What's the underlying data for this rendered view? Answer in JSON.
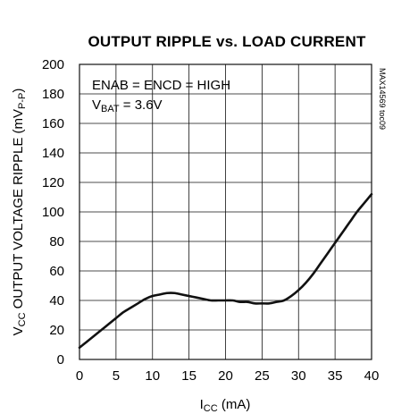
{
  "chart_data": {
    "type": "line",
    "title": "OUTPUT RIPPLE vs. LOAD CURRENT",
    "xlabel": {
      "main": "I",
      "sub": "CC",
      "unit": " (mA)"
    },
    "ylabel": {
      "main": "V",
      "sub": "CC",
      "rest": " OUTPUT VOLTAGE RIPPLE (mV",
      "sub2": "P-P",
      "end": ")"
    },
    "xlim": [
      0,
      40
    ],
    "ylim": [
      0,
      200
    ],
    "xticks": [
      "0",
      "5",
      "10",
      "15",
      "20",
      "25",
      "30",
      "35",
      "40"
    ],
    "yticks": [
      "0",
      "20",
      "40",
      "60",
      "80",
      "100",
      "120",
      "140",
      "160",
      "180",
      "200"
    ],
    "grid": true,
    "annotations": {
      "line1": "ENAB = ENCD = HIGH",
      "line2": {
        "main": "V",
        "sub": "BAT",
        "rest": " = 3.6V"
      }
    },
    "figure_code": "MAX14569 toc09",
    "series": [
      {
        "x": [
          0,
          1,
          2,
          3,
          4,
          5,
          6,
          7,
          8,
          9,
          10,
          11,
          12,
          13,
          14,
          15,
          16,
          17,
          18,
          19,
          20,
          21,
          22,
          23,
          24,
          25,
          26,
          27,
          28,
          29,
          30,
          31,
          32,
          33,
          34,
          35,
          36,
          37,
          38,
          39,
          40
        ],
        "values": [
          8,
          12,
          16,
          20,
          24,
          28,
          32,
          35,
          38,
          41,
          43,
          44,
          45,
          45,
          44,
          43,
          42,
          41,
          40,
          40,
          40,
          40,
          39,
          39,
          38,
          38,
          38,
          39,
          40,
          43,
          47,
          52,
          58,
          65,
          72,
          79,
          86,
          93,
          100,
          106,
          112
        ]
      }
    ]
  }
}
